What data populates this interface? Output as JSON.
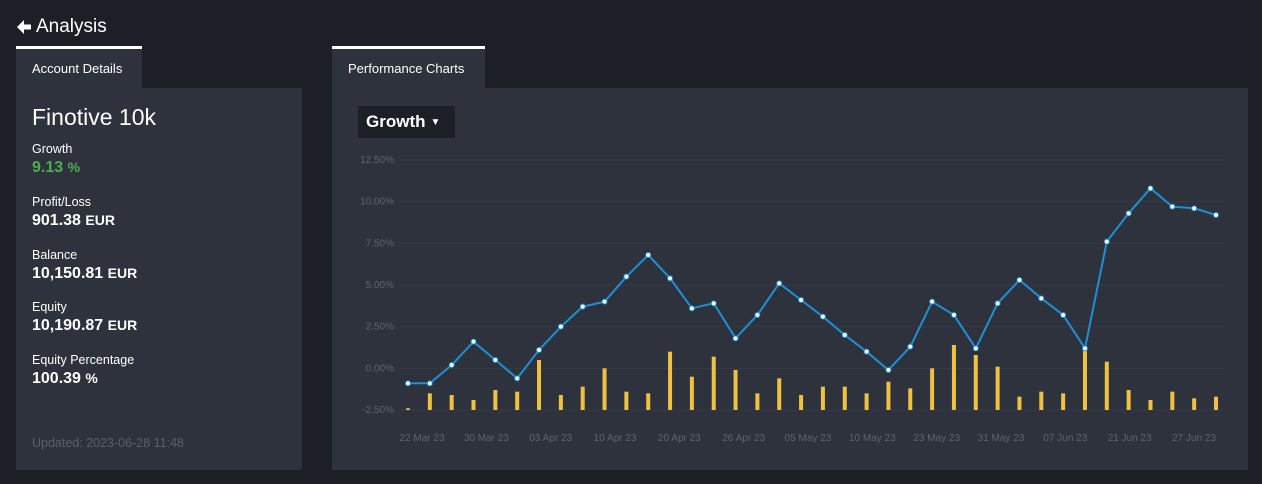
{
  "header": {
    "title": "Analysis"
  },
  "tabs": {
    "account": "Account Details",
    "performance": "Performance Charts"
  },
  "account": {
    "name": "Finotive 10k",
    "growth": {
      "label": "Growth",
      "value": "9.13",
      "unit": "%"
    },
    "profit_loss": {
      "label": "Profit/Loss",
      "value": "901.38",
      "unit": "EUR"
    },
    "balance": {
      "label": "Balance",
      "value": "10,150.81",
      "unit": "EUR"
    },
    "equity": {
      "label": "Equity",
      "value": "10,190.87",
      "unit": "EUR"
    },
    "equity_pct": {
      "label": "Equity Percentage",
      "value": "100.39",
      "unit": "%"
    },
    "updated": "Updated: 2023-06-28 11:48"
  },
  "chart_controls": {
    "selected": "Growth"
  },
  "colors": {
    "line": "#1e90d6",
    "bar": "#f0c040",
    "positive": "#4caf50"
  },
  "chart_data": {
    "type": "line",
    "xlabel": "",
    "ylabel": "",
    "ylim": [
      -2.5,
      12.5
    ],
    "y_ticks": [
      "12.50%",
      "10.00%",
      "7.50%",
      "5.00%",
      "2.50%",
      "0.00%",
      "-2.50%"
    ],
    "x_ticks": [
      "22 Mar 23",
      "30 Mar 23",
      "03 Apr 23",
      "10 Apr 23",
      "20 Apr 23",
      "26 Apr 23",
      "05 May 23",
      "10 May 23",
      "23 May 23",
      "31 May 23",
      "07 Jun 23",
      "21 Jun 23",
      "27 Jun 23"
    ],
    "grid": true,
    "series": [
      {
        "values": [
          -0.9,
          -0.9,
          0.2,
          1.6,
          0.5,
          -0.6,
          1.1,
          2.5,
          3.7,
          4.0,
          5.5,
          6.8,
          5.4,
          3.6,
          3.9,
          1.8,
          3.2,
          5.1,
          4.1,
          3.1,
          2.0,
          1.0,
          -0.1,
          1.3,
          4.0,
          3.2,
          1.2,
          3.9,
          5.3,
          4.2,
          3.2,
          1.2,
          7.6,
          9.3,
          10.8,
          9.7,
          9.6,
          9.2
        ]
      },
      {
        "values": [
          -2.4,
          -1.5,
          -1.6,
          -1.9,
          -1.3,
          -1.4,
          0.5,
          -1.6,
          -1.1,
          0.0,
          -1.4,
          -1.5,
          1.0,
          -0.5,
          0.7,
          -0.1,
          -1.5,
          -0.6,
          -1.6,
          -1.1,
          -1.1,
          -1.5,
          -0.8,
          -1.2,
          0.0,
          1.4,
          0.8,
          0.1,
          -1.7,
          -1.4,
          -1.5,
          1.2,
          0.4,
          -1.3,
          -1.9,
          -1.4,
          -1.8,
          -1.7
        ]
      }
    ]
  }
}
